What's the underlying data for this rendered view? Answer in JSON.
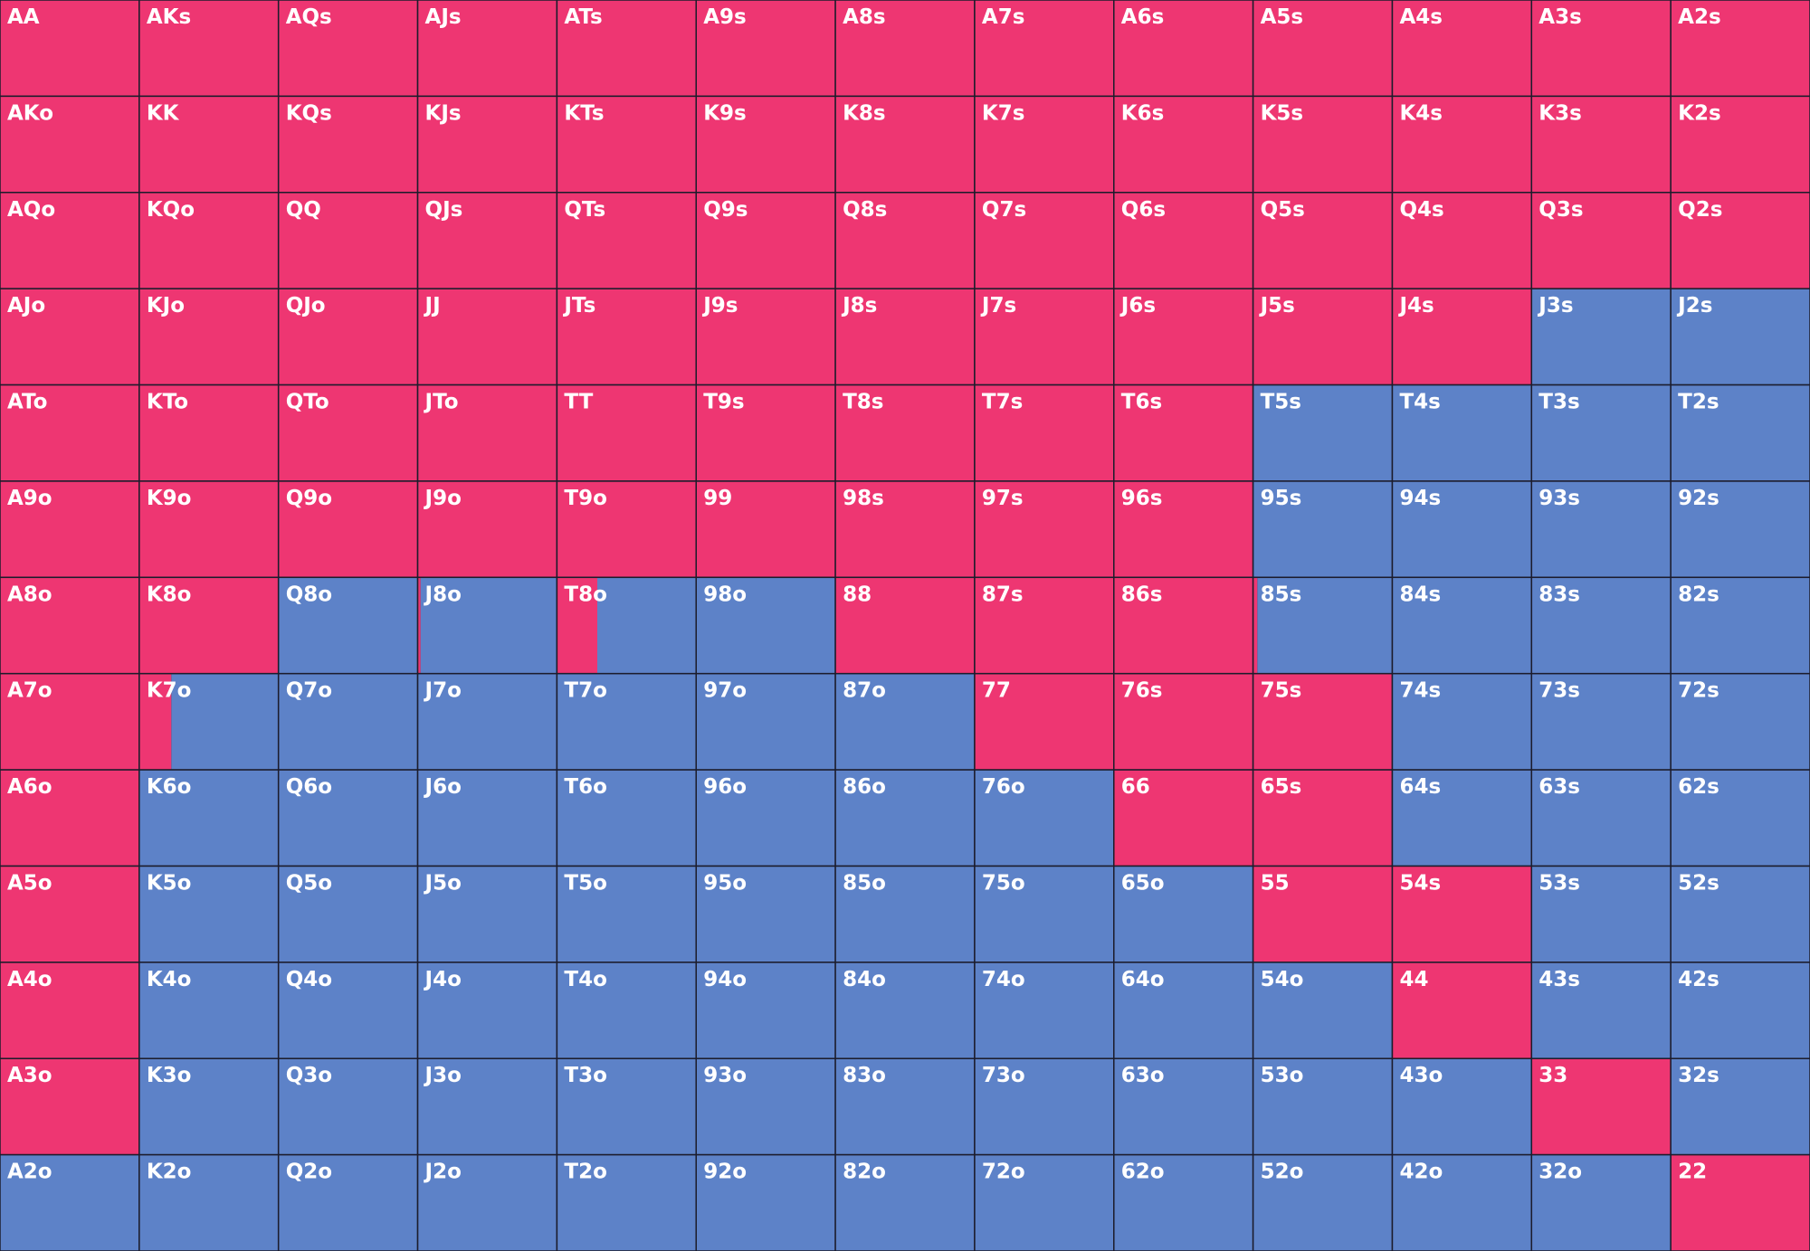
{
  "colors": {
    "raise": "#ee3672",
    "other": "#5d82c8",
    "border": "#1c1c2c",
    "text": "#ffffff"
  },
  "grid": {
    "rows": [
      [
        {
          "label": "AA",
          "raise": 100
        },
        {
          "label": "AKs",
          "raise": 100
        },
        {
          "label": "AQs",
          "raise": 100
        },
        {
          "label": "AJs",
          "raise": 100
        },
        {
          "label": "ATs",
          "raise": 100
        },
        {
          "label": "A9s",
          "raise": 100
        },
        {
          "label": "A8s",
          "raise": 100
        },
        {
          "label": "A7s",
          "raise": 100
        },
        {
          "label": "A6s",
          "raise": 100
        },
        {
          "label": "A5s",
          "raise": 100
        },
        {
          "label": "A4s",
          "raise": 100
        },
        {
          "label": "A3s",
          "raise": 100
        },
        {
          "label": "A2s",
          "raise": 100
        }
      ],
      [
        {
          "label": "AKo",
          "raise": 100
        },
        {
          "label": "KK",
          "raise": 100
        },
        {
          "label": "KQs",
          "raise": 100
        },
        {
          "label": "KJs",
          "raise": 100
        },
        {
          "label": "KTs",
          "raise": 100
        },
        {
          "label": "K9s",
          "raise": 100
        },
        {
          "label": "K8s",
          "raise": 100
        },
        {
          "label": "K7s",
          "raise": 100
        },
        {
          "label": "K6s",
          "raise": 100
        },
        {
          "label": "K5s",
          "raise": 100
        },
        {
          "label": "K4s",
          "raise": 100
        },
        {
          "label": "K3s",
          "raise": 100
        },
        {
          "label": "K2s",
          "raise": 100
        }
      ],
      [
        {
          "label": "AQo",
          "raise": 100
        },
        {
          "label": "KQo",
          "raise": 100
        },
        {
          "label": "QQ",
          "raise": 100
        },
        {
          "label": "QJs",
          "raise": 100
        },
        {
          "label": "QTs",
          "raise": 100
        },
        {
          "label": "Q9s",
          "raise": 100
        },
        {
          "label": "Q8s",
          "raise": 100
        },
        {
          "label": "Q7s",
          "raise": 100
        },
        {
          "label": "Q6s",
          "raise": 100
        },
        {
          "label": "Q5s",
          "raise": 100
        },
        {
          "label": "Q4s",
          "raise": 100
        },
        {
          "label": "Q3s",
          "raise": 100
        },
        {
          "label": "Q2s",
          "raise": 100
        }
      ],
      [
        {
          "label": "AJo",
          "raise": 100
        },
        {
          "label": "KJo",
          "raise": 100
        },
        {
          "label": "QJo",
          "raise": 100
        },
        {
          "label": "JJ",
          "raise": 100
        },
        {
          "label": "JTs",
          "raise": 100
        },
        {
          "label": "J9s",
          "raise": 100
        },
        {
          "label": "J8s",
          "raise": 100
        },
        {
          "label": "J7s",
          "raise": 100
        },
        {
          "label": "J6s",
          "raise": 100
        },
        {
          "label": "J5s",
          "raise": 100
        },
        {
          "label": "J4s",
          "raise": 100
        },
        {
          "label": "J3s",
          "raise": 0
        },
        {
          "label": "J2s",
          "raise": 0
        }
      ],
      [
        {
          "label": "ATo",
          "raise": 100
        },
        {
          "label": "KTo",
          "raise": 100
        },
        {
          "label": "QTo",
          "raise": 100
        },
        {
          "label": "JTo",
          "raise": 100
        },
        {
          "label": "TT",
          "raise": 100
        },
        {
          "label": "T9s",
          "raise": 100
        },
        {
          "label": "T8s",
          "raise": 100
        },
        {
          "label": "T7s",
          "raise": 100
        },
        {
          "label": "T6s",
          "raise": 100
        },
        {
          "label": "T5s",
          "raise": 0
        },
        {
          "label": "T4s",
          "raise": 0
        },
        {
          "label": "T3s",
          "raise": 0
        },
        {
          "label": "T2s",
          "raise": 0
        }
      ],
      [
        {
          "label": "A9o",
          "raise": 100
        },
        {
          "label": "K9o",
          "raise": 100
        },
        {
          "label": "Q9o",
          "raise": 100
        },
        {
          "label": "J9o",
          "raise": 100
        },
        {
          "label": "T9o",
          "raise": 100
        },
        {
          "label": "99",
          "raise": 100
        },
        {
          "label": "98s",
          "raise": 100
        },
        {
          "label": "97s",
          "raise": 100
        },
        {
          "label": "96s",
          "raise": 100
        },
        {
          "label": "95s",
          "raise": 0
        },
        {
          "label": "94s",
          "raise": 0
        },
        {
          "label": "93s",
          "raise": 0
        },
        {
          "label": "92s",
          "raise": 0
        }
      ],
      [
        {
          "label": "A8o",
          "raise": 100
        },
        {
          "label": "K8o",
          "raise": 100
        },
        {
          "label": "Q8o",
          "raise": 0
        },
        {
          "label": "J8o",
          "raise": 2
        },
        {
          "label": "T8o",
          "raise": 29
        },
        {
          "label": "98o",
          "raise": 0
        },
        {
          "label": "88",
          "raise": 100
        },
        {
          "label": "87s",
          "raise": 100
        },
        {
          "label": "86s",
          "raise": 100
        },
        {
          "label": "85s",
          "raise": 3
        },
        {
          "label": "84s",
          "raise": 0
        },
        {
          "label": "83s",
          "raise": 0
        },
        {
          "label": "82s",
          "raise": 0
        }
      ],
      [
        {
          "label": "A7o",
          "raise": 100
        },
        {
          "label": "K7o",
          "raise": 23
        },
        {
          "label": "Q7o",
          "raise": 0
        },
        {
          "label": "J7o",
          "raise": 0
        },
        {
          "label": "T7o",
          "raise": 0
        },
        {
          "label": "97o",
          "raise": 0
        },
        {
          "label": "87o",
          "raise": 0
        },
        {
          "label": "77",
          "raise": 100
        },
        {
          "label": "76s",
          "raise": 100
        },
        {
          "label": "75s",
          "raise": 100
        },
        {
          "label": "74s",
          "raise": 0
        },
        {
          "label": "73s",
          "raise": 0
        },
        {
          "label": "72s",
          "raise": 0
        }
      ],
      [
        {
          "label": "A6o",
          "raise": 100
        },
        {
          "label": "K6o",
          "raise": 0
        },
        {
          "label": "Q6o",
          "raise": 0
        },
        {
          "label": "J6o",
          "raise": 0
        },
        {
          "label": "T6o",
          "raise": 0
        },
        {
          "label": "96o",
          "raise": 0
        },
        {
          "label": "86o",
          "raise": 0
        },
        {
          "label": "76o",
          "raise": 0
        },
        {
          "label": "66",
          "raise": 100
        },
        {
          "label": "65s",
          "raise": 100
        },
        {
          "label": "64s",
          "raise": 0
        },
        {
          "label": "63s",
          "raise": 0
        },
        {
          "label": "62s",
          "raise": 0
        }
      ],
      [
        {
          "label": "A5o",
          "raise": 100
        },
        {
          "label": "K5o",
          "raise": 0
        },
        {
          "label": "Q5o",
          "raise": 0
        },
        {
          "label": "J5o",
          "raise": 0
        },
        {
          "label": "T5o",
          "raise": 0
        },
        {
          "label": "95o",
          "raise": 0
        },
        {
          "label": "85o",
          "raise": 0
        },
        {
          "label": "75o",
          "raise": 0
        },
        {
          "label": "65o",
          "raise": 0
        },
        {
          "label": "55",
          "raise": 100
        },
        {
          "label": "54s",
          "raise": 100
        },
        {
          "label": "53s",
          "raise": 0
        },
        {
          "label": "52s",
          "raise": 0
        }
      ],
      [
        {
          "label": "A4o",
          "raise": 100
        },
        {
          "label": "K4o",
          "raise": 0
        },
        {
          "label": "Q4o",
          "raise": 0
        },
        {
          "label": "J4o",
          "raise": 0
        },
        {
          "label": "T4o",
          "raise": 0
        },
        {
          "label": "94o",
          "raise": 0
        },
        {
          "label": "84o",
          "raise": 0
        },
        {
          "label": "74o",
          "raise": 0
        },
        {
          "label": "64o",
          "raise": 0
        },
        {
          "label": "54o",
          "raise": 0
        },
        {
          "label": "44",
          "raise": 100
        },
        {
          "label": "43s",
          "raise": 0
        },
        {
          "label": "42s",
          "raise": 0
        }
      ],
      [
        {
          "label": "A3o",
          "raise": 100
        },
        {
          "label": "K3o",
          "raise": 0
        },
        {
          "label": "Q3o",
          "raise": 0
        },
        {
          "label": "J3o",
          "raise": 0
        },
        {
          "label": "T3o",
          "raise": 0
        },
        {
          "label": "93o",
          "raise": 0
        },
        {
          "label": "83o",
          "raise": 0
        },
        {
          "label": "73o",
          "raise": 0
        },
        {
          "label": "63o",
          "raise": 0
        },
        {
          "label": "53o",
          "raise": 0
        },
        {
          "label": "43o",
          "raise": 0
        },
        {
          "label": "33",
          "raise": 100
        },
        {
          "label": "32s",
          "raise": 0
        }
      ],
      [
        {
          "label": "A2o",
          "raise": 0
        },
        {
          "label": "K2o",
          "raise": 0
        },
        {
          "label": "Q2o",
          "raise": 0
        },
        {
          "label": "J2o",
          "raise": 0
        },
        {
          "label": "T2o",
          "raise": 0
        },
        {
          "label": "92o",
          "raise": 0
        },
        {
          "label": "82o",
          "raise": 0
        },
        {
          "label": "72o",
          "raise": 0
        },
        {
          "label": "62o",
          "raise": 0
        },
        {
          "label": "52o",
          "raise": 0
        },
        {
          "label": "42o",
          "raise": 0
        },
        {
          "label": "32o",
          "raise": 0
        },
        {
          "label": "22",
          "raise": 100
        }
      ]
    ]
  }
}
